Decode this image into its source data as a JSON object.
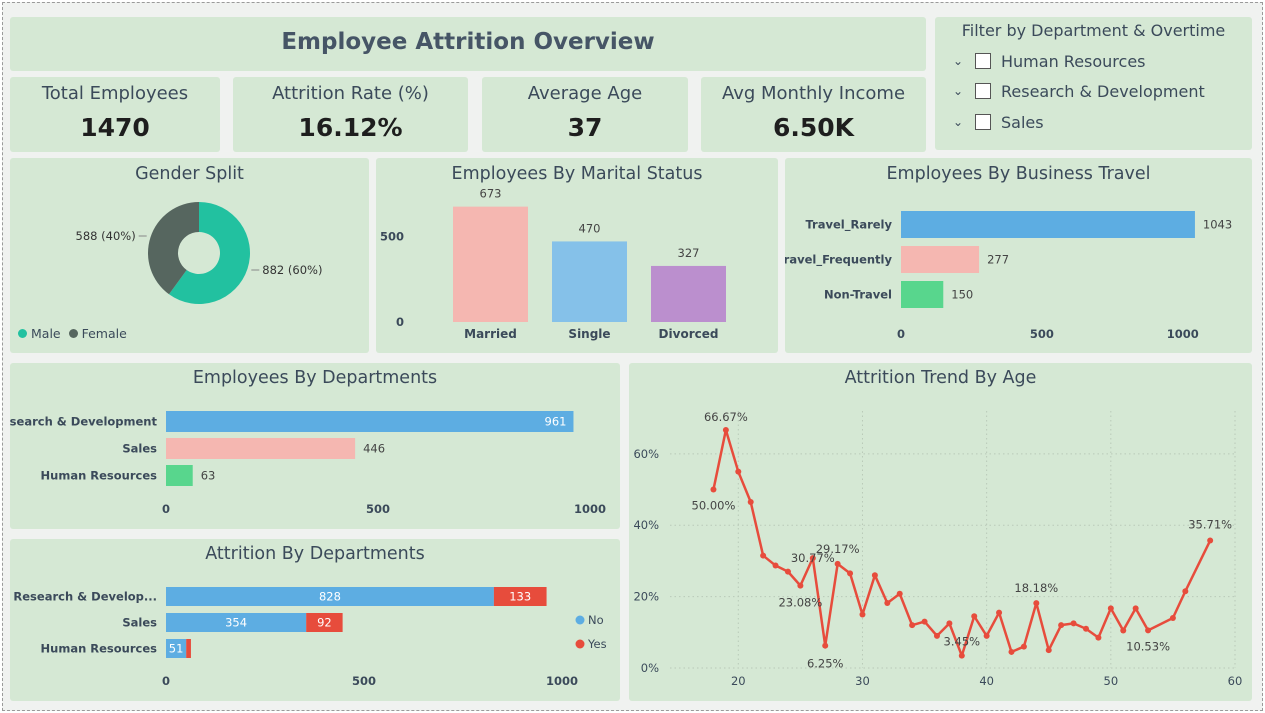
{
  "header": {
    "title": "Employee Attrition Overview"
  },
  "kpis": [
    {
      "label": "Total Employees",
      "value": "1470"
    },
    {
      "label": "Attrition Rate (%)",
      "value": "16.12%"
    },
    {
      "label": "Average Age",
      "value": "37"
    },
    {
      "label": "Avg Monthly Income",
      "value": "6.50K"
    }
  ],
  "filter": {
    "title": "Filter by Department & Overtime",
    "items": [
      "Human Resources",
      "Research & Development",
      "Sales"
    ]
  },
  "colors": {
    "card": "#d5e8d4",
    "teal": "#22c1a0",
    "dark": "#56665f",
    "blue": "#5dade2",
    "pink": "#f5b7b1",
    "green": "#58d68d",
    "lightblue": "#85c1e9",
    "purple": "#bb8fce",
    "red": "#e74c3c"
  },
  "chart_data": [
    {
      "id": "gender",
      "type": "pie",
      "title": "Gender Split",
      "slices": [
        {
          "name": "Male",
          "value": 882,
          "label": "882 (60%)",
          "color": "#22c1a0"
        },
        {
          "name": "Female",
          "value": 588,
          "label": "588 (40%)",
          "color": "#56665f"
        }
      ],
      "legend": [
        "Male",
        "Female"
      ],
      "legend_position": "bottom-left"
    },
    {
      "id": "marital",
      "type": "bar",
      "title": "Employees By Marital Status",
      "categories": [
        "Married",
        "Single",
        "Divorced"
      ],
      "values": [
        673,
        470,
        327
      ],
      "colors": [
        "#f5b7b1",
        "#85c1e9",
        "#bb8fce"
      ],
      "yticks": [
        0,
        500
      ],
      "ylim": [
        0,
        700
      ]
    },
    {
      "id": "travel",
      "type": "bar",
      "orientation": "horizontal",
      "title": "Employees By Business Travel",
      "categories": [
        "Travel_Rarely",
        "Travel_Frequently",
        "Non-Travel"
      ],
      "values": [
        1043,
        277,
        150
      ],
      "colors": [
        "#5dade2",
        "#f5b7b1",
        "#58d68d"
      ],
      "xticks": [
        0,
        500,
        1000
      ],
      "xlim": [
        0,
        1100
      ]
    },
    {
      "id": "departments",
      "type": "bar",
      "orientation": "horizontal",
      "title": "Employees By Departments",
      "categories": [
        "Research & Development",
        "Sales",
        "Human Resources"
      ],
      "values": [
        961,
        446,
        63
      ],
      "colors": [
        "#5dade2",
        "#f5b7b1",
        "#58d68d"
      ],
      "xticks": [
        0,
        500,
        1000
      ],
      "xlim": [
        0,
        1000
      ]
    },
    {
      "id": "attrition_dept",
      "type": "bar",
      "orientation": "horizontal",
      "stacked": true,
      "title": "Attrition By Departments",
      "categories": [
        "Research & Develop...",
        "Sales",
        "Human Resources"
      ],
      "series": [
        {
          "name": "No",
          "values": [
            828,
            354,
            51
          ],
          "color": "#5dade2"
        },
        {
          "name": "Yes",
          "values": [
            133,
            92,
            12
          ],
          "color": "#e74c3c"
        }
      ],
      "xticks": [
        0,
        500,
        1000
      ],
      "xlim": [
        0,
        1000
      ],
      "legend_position": "right"
    },
    {
      "id": "age_trend",
      "type": "line",
      "title": "Attrition Trend By Age",
      "x": [
        18,
        19,
        20,
        21,
        22,
        23,
        24,
        25,
        26,
        27,
        28,
        29,
        30,
        31,
        32,
        33,
        34,
        35,
        36,
        37,
        38,
        39,
        40,
        41,
        42,
        43,
        44,
        45,
        46,
        47,
        48,
        49,
        50,
        51,
        52,
        53,
        55,
        56,
        58
      ],
      "values": [
        50.0,
        66.67,
        55.0,
        46.5,
        31.5,
        28.7,
        27.0,
        23.08,
        30.77,
        6.25,
        29.17,
        26.5,
        15.0,
        26.0,
        18.2,
        20.8,
        12.0,
        13.0,
        9.0,
        12.5,
        3.45,
        14.5,
        9.0,
        15.5,
        4.5,
        6.0,
        18.18,
        5.0,
        12.0,
        12.5,
        11.0,
        8.5,
        16.7,
        10.5,
        16.7,
        10.53,
        14.0,
        21.5,
        35.71
      ],
      "annotations": [
        {
          "x": 18,
          "text": "50.00%"
        },
        {
          "x": 19,
          "text": "66.67%"
        },
        {
          "x": 25,
          "text": "23.08%"
        },
        {
          "x": 26,
          "text": "30.77%"
        },
        {
          "x": 27,
          "text": "6.25%"
        },
        {
          "x": 28,
          "text": "29.17%"
        },
        {
          "x": 38,
          "text": "3.45%"
        },
        {
          "x": 44,
          "text": "18.18%"
        },
        {
          "x": 53,
          "text": "10.53%"
        },
        {
          "x": 58,
          "text": "35.71%"
        }
      ],
      "xticks": [
        20,
        30,
        40,
        50,
        60
      ],
      "xlim": [
        14.5,
        60
      ],
      "yticks": [
        0,
        20,
        40,
        60
      ],
      "ytick_labels": [
        "0%",
        "20%",
        "40%",
        "60%"
      ],
      "ylim": [
        0,
        72
      ],
      "grid": true,
      "color": "#e74c3c"
    }
  ]
}
